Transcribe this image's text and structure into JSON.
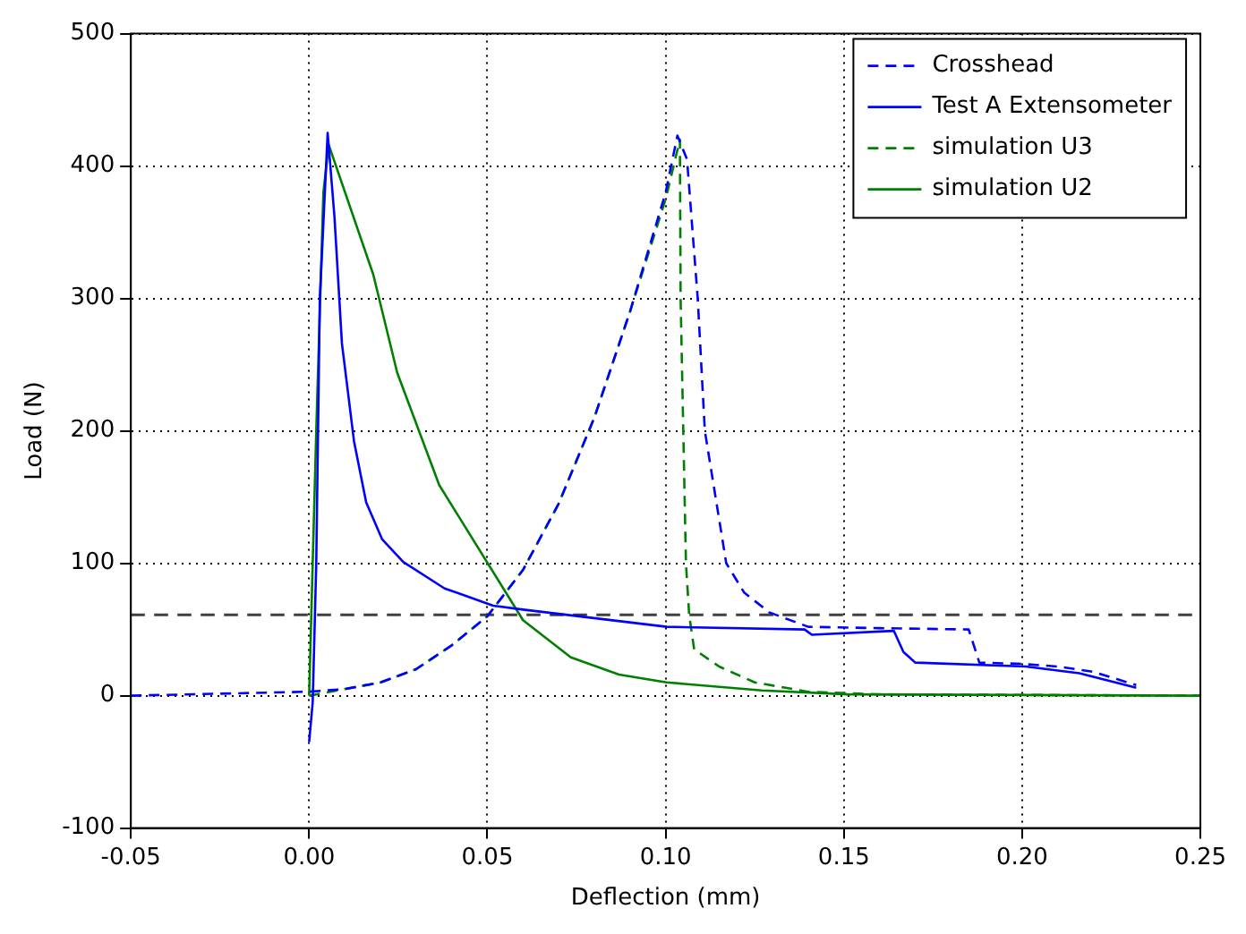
{
  "chart_data": {
    "type": "line",
    "xlabel": "Deflection (mm)",
    "ylabel": "Load (N)",
    "xlim": [
      -0.05,
      0.25
    ],
    "xticks": [
      -0.05,
      {
        "value": 0,
        "label": "0.00"
      },
      0.05,
      {
        "value": 0.1,
        "label": "0.10"
      },
      0.15,
      {
        "value": 0.2,
        "label": "0.20"
      },
      0.25
    ],
    "ylim": [
      -100,
      500
    ],
    "yticks": [
      -100,
      0,
      100,
      200,
      300,
      400,
      500
    ],
    "grid": true,
    "legend": "top right",
    "marker": "none",
    "series": [
      {
        "name": "Crosshead",
        "color": "#0000ff",
        "line_style": "dashed",
        "x": [
          -0.05,
          0,
          0.01,
          0.02,
          0.03,
          0.04,
          0.05,
          0.06,
          0.07,
          0.08,
          0.09,
          0.1,
          0.1033,
          0.106,
          0.109,
          0.111,
          0.117,
          0.122,
          0.129,
          0.14,
          0.16,
          0.185,
          0.188,
          0.2,
          0.21,
          0.22,
          0.232
        ],
        "values": [
          0,
          3,
          5,
          10,
          20,
          38,
          60,
          95,
          145,
          210,
          290,
          380,
          423,
          405,
          300,
          200,
          100,
          78,
          63,
          52,
          51,
          50,
          25,
          24,
          22,
          18,
          8
        ]
      },
      {
        "name": "Test A Extensometer",
        "color": "#0000ff",
        "line_style": "solid",
        "x": [
          0,
          0.001,
          0.002,
          0.003,
          0.0052,
          0.0071,
          0.0092,
          0.0126,
          0.016,
          0.0205,
          0.0264,
          0.038,
          0.0516,
          0.06,
          0.1003,
          0.139,
          0.141,
          0.164,
          0.1667,
          0.17,
          0.201,
          0.216,
          0.232
        ],
        "values": [
          -35,
          -5,
          100,
          300,
          425,
          362,
          266,
          192,
          146,
          118,
          101,
          81,
          68,
          65,
          52,
          50,
          46,
          49,
          33,
          25,
          22,
          17,
          6
        ]
      },
      {
        "name": "simulation U3",
        "color": "#008000",
        "line_style": "dashed",
        "x": [
          0,
          0.01,
          0.02,
          0.03,
          0.04,
          0.05,
          0.06,
          0.07,
          0.08,
          0.09,
          0.1,
          0.104,
          0.1042,
          0.1057,
          0.1066,
          0.108,
          0.115,
          0.125,
          0.14,
          0.16,
          0.25
        ],
        "values": [
          0,
          5,
          10,
          20,
          38,
          60,
          95,
          145,
          210,
          290,
          375,
          420,
          300,
          100,
          61,
          35,
          22,
          10,
          3,
          1,
          0
        ]
      },
      {
        "name": "simulation U2",
        "color": "#008000",
        "line_style": "solid",
        "x": [
          0,
          0.002,
          0.004,
          0.0055,
          0.018,
          0.0247,
          0.0365,
          0.06,
          0.0734,
          0.0869,
          0.1003,
          0.127,
          0.151,
          0.25
        ],
        "values": [
          0,
          200,
          380,
          416,
          318,
          244,
          159,
          57,
          29,
          16,
          10,
          4,
          1,
          0
        ]
      }
    ],
    "ref_lines": [
      {
        "axis": "y",
        "value": 61,
        "color": "#404040",
        "line_style": "dashed"
      }
    ]
  }
}
